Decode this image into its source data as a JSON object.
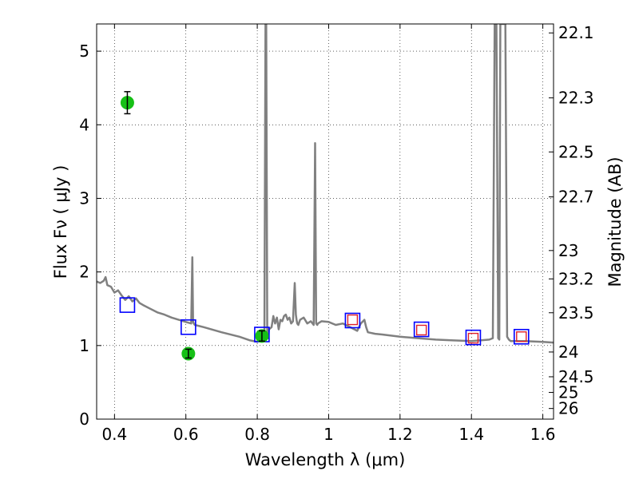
{
  "chart_data": {
    "type": "line",
    "xlabel": "Wavelength  λ (μm)",
    "ylabel": "Flux  Fν  ( μJy )",
    "y2label": "Magnitude (AB)",
    "xlim": [
      0.35,
      1.63
    ],
    "ylim": [
      0,
      5.37
    ],
    "grid": true,
    "x_ticks": [
      {
        "value": 0.4,
        "label": "0.4"
      },
      {
        "value": 0.6,
        "label": "0.6"
      },
      {
        "value": 0.8,
        "label": "0.8"
      },
      {
        "value": 1.0,
        "label": "1"
      },
      {
        "value": 1.2,
        "label": "1.2"
      },
      {
        "value": 1.4,
        "label": "1.4"
      },
      {
        "value": 1.6,
        "label": "1.6"
      }
    ],
    "y_ticks": [
      {
        "value": 0,
        "label": "0"
      },
      {
        "value": 1,
        "label": "1"
      },
      {
        "value": 2,
        "label": "2"
      },
      {
        "value": 3,
        "label": "3"
      },
      {
        "value": 4,
        "label": "4"
      },
      {
        "value": 5,
        "label": "5"
      }
    ],
    "mag_ticks": [
      {
        "value": 22.1,
        "label": "22.1"
      },
      {
        "value": 22.3,
        "label": "22.3"
      },
      {
        "value": 22.5,
        "label": "22.5"
      },
      {
        "value": 22.7,
        "label": "22.7"
      },
      {
        "value": 23.0,
        "label": "23"
      },
      {
        "value": 23.2,
        "label": "23.2"
      },
      {
        "value": 23.5,
        "label": "23.5"
      },
      {
        "value": 24.0,
        "label": "24"
      },
      {
        "value": 24.5,
        "label": "24.5"
      },
      {
        "value": 25.0,
        "label": "25"
      },
      {
        "value": 26.0,
        "label": "26"
      }
    ],
    "model_spectrum": {
      "color": "#808080",
      "x": [
        0.35,
        0.36,
        0.37,
        0.375,
        0.38,
        0.39,
        0.4,
        0.41,
        0.42,
        0.43,
        0.44,
        0.45,
        0.46,
        0.47,
        0.48,
        0.5,
        0.52,
        0.54,
        0.56,
        0.58,
        0.6,
        0.615,
        0.618,
        0.62,
        0.622,
        0.625,
        0.65,
        0.7,
        0.75,
        0.78,
        0.8,
        0.81,
        0.82,
        0.823,
        0.825,
        0.828,
        0.83,
        0.833,
        0.84,
        0.845,
        0.85,
        0.855,
        0.86,
        0.865,
        0.87,
        0.875,
        0.88,
        0.885,
        0.89,
        0.895,
        0.9,
        0.905,
        0.908,
        0.91,
        0.912,
        0.915,
        0.92,
        0.93,
        0.94,
        0.95,
        0.958,
        0.962,
        0.965,
        0.968,
        0.97,
        0.98,
        1.0,
        1.02,
        1.04,
        1.06,
        1.08,
        1.09,
        1.1,
        1.105,
        1.11,
        1.13,
        1.15,
        1.2,
        1.25,
        1.3,
        1.35,
        1.4,
        1.45,
        1.46,
        1.465,
        1.47,
        1.475,
        1.478,
        1.481,
        1.485,
        1.49,
        1.495,
        1.5,
        1.505,
        1.51,
        1.55,
        1.6,
        1.63
      ],
      "y": [
        1.87,
        1.85,
        1.88,
        1.93,
        1.82,
        1.8,
        1.72,
        1.75,
        1.68,
        1.62,
        1.67,
        1.6,
        1.64,
        1.58,
        1.55,
        1.5,
        1.45,
        1.42,
        1.38,
        1.35,
        1.32,
        1.3,
        2.2,
        1.33,
        1.3,
        1.28,
        1.25,
        1.18,
        1.12,
        1.07,
        1.05,
        1.08,
        1.06,
        5.37,
        5.37,
        1.15,
        1.1,
        1.22,
        1.25,
        1.4,
        1.3,
        1.38,
        1.22,
        1.35,
        1.33,
        1.4,
        1.42,
        1.35,
        1.38,
        1.3,
        1.33,
        1.85,
        1.42,
        1.35,
        1.3,
        1.28,
        1.35,
        1.38,
        1.3,
        1.33,
        1.28,
        3.75,
        1.3,
        1.28,
        1.3,
        1.33,
        1.32,
        1.28,
        1.3,
        1.25,
        1.2,
        1.3,
        1.35,
        1.25,
        1.18,
        1.16,
        1.15,
        1.12,
        1.1,
        1.08,
        1.07,
        1.06,
        1.08,
        1.1,
        5.37,
        5.37,
        1.1,
        1.08,
        5.37,
        5.37,
        5.37,
        5.37,
        1.12,
        1.08,
        1.06,
        1.06,
        1.05,
        1.04
      ]
    },
    "model_photometry": {
      "marker": "open-square",
      "color": "#0000ff",
      "x": [
        0.436,
        0.607,
        0.813,
        1.067,
        1.26,
        1.405,
        1.54
      ],
      "y": [
        1.55,
        1.25,
        1.15,
        1.34,
        1.22,
        1.11,
        1.12
      ]
    },
    "hst_photometry": {
      "marker": "open-square",
      "color": "#e0202a",
      "x": [
        1.067,
        1.26,
        1.405,
        1.54
      ],
      "y": [
        1.35,
        1.21,
        1.1,
        1.12
      ]
    },
    "observed_photometry": {
      "marker": "filled-circle",
      "color": "#16c016",
      "x": [
        0.436,
        0.607,
        0.813
      ],
      "y": [
        4.3,
        0.89,
        1.13
      ],
      "yerr": [
        0.15,
        0.06,
        0.07
      ]
    }
  }
}
